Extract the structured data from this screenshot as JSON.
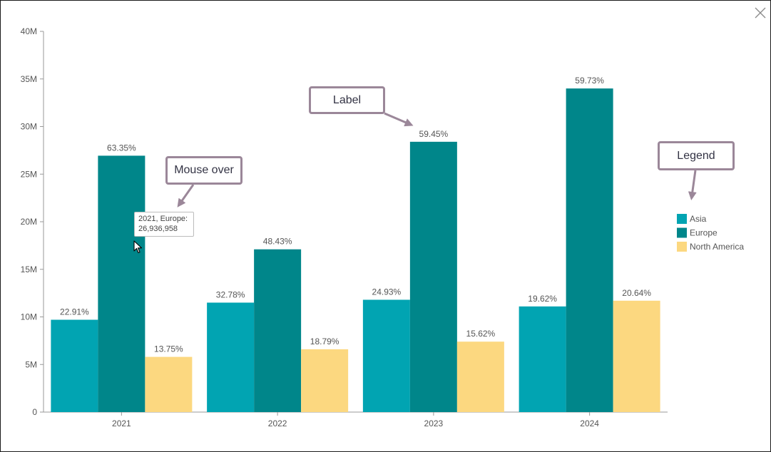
{
  "chart_data": {
    "type": "bar",
    "categories": [
      "2021",
      "2022",
      "2023",
      "2024"
    ],
    "series": [
      {
        "name": "Asia",
        "color": "#01A4B2",
        "values": [
          9700000,
          11500000,
          11800000,
          11100000
        ],
        "labels": [
          "22.91%",
          "32.78%",
          "24.93%",
          "19.62%"
        ]
      },
      {
        "name": "Europe",
        "color": "#00868A",
        "values": [
          26936958,
          17100000,
          28400000,
          34000000
        ],
        "labels": [
          "63.35%",
          "48.43%",
          "59.45%",
          "59.73%"
        ]
      },
      {
        "name": "North America",
        "color": "#FCD880",
        "values": [
          5800000,
          6600000,
          7400000,
          11700000
        ],
        "labels": [
          "13.75%",
          "18.79%",
          "15.62%",
          "20.64%"
        ]
      }
    ],
    "y_ticks": [
      {
        "value": 0,
        "label": "0"
      },
      {
        "value": 5000000,
        "label": "5M"
      },
      {
        "value": 10000000,
        "label": "10M"
      },
      {
        "value": 15000000,
        "label": "15M"
      },
      {
        "value": 20000000,
        "label": "20M"
      },
      {
        "value": 25000000,
        "label": "25M"
      },
      {
        "value": 30000000,
        "label": "30M"
      },
      {
        "value": 35000000,
        "label": "35M"
      },
      {
        "value": 40000000,
        "label": "40M"
      }
    ],
    "ylim": [
      0,
      40000000
    ],
    "legend_position": "right",
    "grid": false
  },
  "tooltip": {
    "line1": "2021, Europe:",
    "line2": "26,936,958"
  },
  "annotations": {
    "mouse_over": "Mouse over",
    "label": "Label",
    "legend": "Legend"
  },
  "icons": {
    "close": "close-icon",
    "cursor": "mouse-cursor-icon"
  },
  "colors": {
    "callout_border": "#9b8799",
    "axis": "#999999"
  }
}
